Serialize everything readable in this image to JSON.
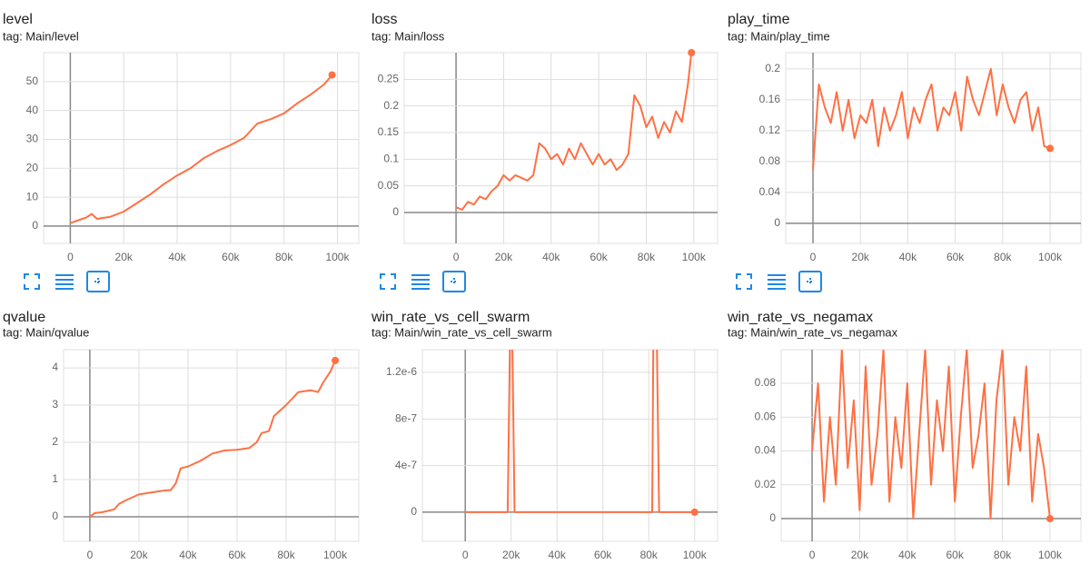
{
  "chart_data": [
    {
      "type": "line",
      "title": "level",
      "subtitle": "tag: Main/level",
      "x": [
        0,
        3000,
        6000,
        8000,
        10000,
        15000,
        20000,
        25000,
        30000,
        35000,
        40000,
        45000,
        50000,
        55000,
        60000,
        65000,
        70000,
        75000,
        80000,
        85000,
        90000,
        95000,
        98000
      ],
      "series": [
        {
          "color": "#ff7043",
          "values": [
            1,
            2,
            3,
            4.2,
            2.5,
            3.2,
            5,
            8,
            11,
            14.5,
            17.5,
            20,
            23.5,
            26,
            28,
            30.5,
            35.5,
            37,
            39,
            42.5,
            45.5,
            49,
            52.3
          ]
        }
      ],
      "xlim": [
        -10000,
        108000
      ],
      "ylim": [
        -6,
        60
      ],
      "xticks": [
        0,
        {
          "value": 20000,
          "label": "20k"
        },
        {
          "value": 40000,
          "label": "40k"
        },
        {
          "value": 60000,
          "label": "60k"
        },
        {
          "value": 80000,
          "label": "80k"
        },
        {
          "value": 100000,
          "label": "100k"
        }
      ],
      "yticks": [
        0,
        10,
        20,
        30,
        40,
        50
      ],
      "grid": true
    },
    {
      "type": "line",
      "title": "loss",
      "subtitle": "tag: Main/loss",
      "x": [
        0,
        2500,
        5000,
        7500,
        10000,
        12500,
        15000,
        17500,
        20000,
        22500,
        25000,
        27500,
        30000,
        32500,
        35000,
        37500,
        40000,
        42500,
        45000,
        47500,
        50000,
        52500,
        55000,
        57500,
        60000,
        62500,
        65000,
        67500,
        70000,
        72500,
        75000,
        77500,
        80000,
        82500,
        85000,
        87500,
        90000,
        92500,
        95000,
        97500,
        99000
      ],
      "series": [
        {
          "color": "#ff7043",
          "values": [
            0.01,
            0.005,
            0.02,
            0.015,
            0.03,
            0.025,
            0.04,
            0.05,
            0.07,
            0.06,
            0.07,
            0.065,
            0.06,
            0.07,
            0.13,
            0.12,
            0.1,
            0.11,
            0.09,
            0.12,
            0.1,
            0.13,
            0.11,
            0.09,
            0.11,
            0.09,
            0.1,
            0.08,
            0.09,
            0.11,
            0.22,
            0.2,
            0.16,
            0.18,
            0.14,
            0.17,
            0.15,
            0.19,
            0.17,
            0.24,
            0.3
          ]
        }
      ],
      "xlim": [
        -21800,
        110000
      ],
      "ylim": [
        -0.058,
        0.3
      ],
      "xticks": [
        0,
        {
          "value": 20000,
          "label": "20k"
        },
        {
          "value": 40000,
          "label": "40k"
        },
        {
          "value": 60000,
          "label": "60k"
        },
        {
          "value": 80000,
          "label": "80k"
        },
        {
          "value": 100000,
          "label": "100k"
        }
      ],
      "yticks": [
        0,
        0.05,
        0.1,
        0.15,
        0.2,
        0.25
      ],
      "grid": true
    },
    {
      "type": "line",
      "title": "play_time",
      "subtitle": "tag: Main/play_time",
      "x": [
        0,
        2500,
        5000,
        7500,
        10000,
        12500,
        15000,
        17500,
        20000,
        22500,
        25000,
        27500,
        30000,
        32500,
        35000,
        37500,
        40000,
        42500,
        45000,
        47500,
        50000,
        52500,
        55000,
        57500,
        60000,
        62500,
        65000,
        67500,
        70000,
        72500,
        75000,
        77500,
        80000,
        82500,
        85000,
        87500,
        90000,
        92500,
        95000,
        97500,
        100000
      ],
      "series": [
        {
          "color": "#ff7043",
          "values": [
            0.07,
            0.18,
            0.15,
            0.13,
            0.17,
            0.12,
            0.16,
            0.11,
            0.14,
            0.13,
            0.16,
            0.1,
            0.15,
            0.12,
            0.14,
            0.17,
            0.11,
            0.15,
            0.13,
            0.16,
            0.18,
            0.12,
            0.15,
            0.14,
            0.17,
            0.12,
            0.19,
            0.16,
            0.14,
            0.17,
            0.2,
            0.14,
            0.18,
            0.15,
            0.13,
            0.16,
            0.17,
            0.12,
            0.15,
            0.1,
            0.097
          ]
        }
      ],
      "xlim": [
        -11500,
        113000
      ],
      "ylim": [
        -0.026,
        0.221
      ],
      "xticks": [
        0,
        {
          "value": 20000,
          "label": "20k"
        },
        {
          "value": 40000,
          "label": "40k"
        },
        {
          "value": 60000,
          "label": "60k"
        },
        {
          "value": 80000,
          "label": "80k"
        },
        {
          "value": 100000,
          "label": "100k"
        }
      ],
      "yticks": [
        0,
        0.04,
        0.08,
        0.12,
        0.16,
        0.2
      ],
      "grid": true
    },
    {
      "type": "line",
      "title": "qvalue",
      "subtitle": "tag: Main/qvalue",
      "x": [
        0,
        2000,
        5000,
        10000,
        12000,
        15000,
        20000,
        25000,
        30000,
        33000,
        35000,
        37000,
        40000,
        45000,
        50000,
        55000,
        60000,
        65000,
        68000,
        70000,
        73000,
        75000,
        80000,
        85000,
        90000,
        93000,
        95000,
        98000,
        100000
      ],
      "series": [
        {
          "color": "#ff7043",
          "values": [
            0,
            0.1,
            0.12,
            0.2,
            0.35,
            0.45,
            0.6,
            0.65,
            0.7,
            0.72,
            0.9,
            1.3,
            1.35,
            1.5,
            1.7,
            1.78,
            1.8,
            1.85,
            2.0,
            2.25,
            2.3,
            2.7,
            3.0,
            3.35,
            3.4,
            3.35,
            3.6,
            3.9,
            4.2
          ]
        }
      ],
      "xlim": [
        -10700,
        109600
      ],
      "ylim": [
        -0.66,
        4.49
      ],
      "xticks": [
        0,
        {
          "value": 20000,
          "label": "20k"
        },
        {
          "value": 40000,
          "label": "40k"
        },
        {
          "value": 60000,
          "label": "60k"
        },
        {
          "value": 80000,
          "label": "80k"
        },
        {
          "value": 100000,
          "label": "100k"
        }
      ],
      "yticks": [
        0,
        1,
        2,
        3,
        4
      ],
      "grid": true
    },
    {
      "type": "line",
      "title": "win_rate_vs_cell_swarm",
      "subtitle": "tag: Main/win_rate_vs_cell_swarm",
      "x": [
        0,
        18500,
        19500,
        20500,
        21500,
        81500,
        82000,
        83500,
        84500,
        100000
      ],
      "series": [
        {
          "color": "#ff7043",
          "values": [
            0,
            0,
            1.5e-06,
            1.5e-06,
            0,
            0,
            1.5e-06,
            1.5e-06,
            0,
            0
          ]
        }
      ],
      "xlim": [
        -18700,
        110000
      ],
      "ylim": [
        -2.5e-07,
        1.395e-06
      ],
      "xticks": [
        0,
        {
          "value": 20000,
          "label": "20k"
        },
        {
          "value": 40000,
          "label": "40k"
        },
        {
          "value": 60000,
          "label": "60k"
        },
        {
          "value": 80000,
          "label": "80k"
        },
        {
          "value": 100000,
          "label": "100k"
        }
      ],
      "yticks": [
        0,
        {
          "value": 4e-07,
          "label": "4e-7"
        },
        {
          "value": 8e-07,
          "label": "8e-7"
        },
        {
          "value": 1.2e-06,
          "label": "1.2e-6"
        }
      ],
      "grid": true
    },
    {
      "type": "line",
      "title": "win_rate_vs_negamax",
      "subtitle": "tag: Main/win_rate_vs_negamax",
      "x": [
        0,
        2500,
        5000,
        7500,
        10000,
        12500,
        15000,
        17500,
        20000,
        22500,
        25000,
        27500,
        30000,
        32500,
        35000,
        37500,
        40000,
        42500,
        45000,
        47500,
        50000,
        52500,
        55000,
        57500,
        60000,
        62500,
        65000,
        67500,
        70000,
        72500,
        75000,
        77500,
        80000,
        82500,
        85000,
        87500,
        90000,
        92500,
        95000,
        97500,
        100000
      ],
      "series": [
        {
          "color": "#ff7043",
          "values": [
            0.04,
            0.08,
            0.01,
            0.06,
            0.02,
            0.1,
            0.03,
            0.07,
            0.005,
            0.09,
            0.02,
            0.05,
            0.1,
            0.01,
            0.06,
            0.03,
            0.08,
            0.0,
            0.05,
            0.1,
            0.02,
            0.07,
            0.04,
            0.09,
            0.01,
            0.06,
            0.1,
            0.03,
            0.05,
            0.08,
            0.0,
            0.07,
            0.1,
            0.02,
            0.06,
            0.04,
            0.09,
            0.01,
            0.05,
            0.03,
            0.0
          ]
        }
      ],
      "xlim": [
        -13000,
        113000
      ],
      "ylim": [
        -0.0134,
        0.0999
      ],
      "xticks": [
        0,
        {
          "value": 20000,
          "label": "20k"
        },
        {
          "value": 40000,
          "label": "40k"
        },
        {
          "value": 60000,
          "label": "60k"
        },
        {
          "value": 80000,
          "label": "80k"
        },
        {
          "value": 100000,
          "label": "100k"
        }
      ],
      "yticks": [
        0,
        0.02,
        0.04,
        0.06,
        0.08
      ],
      "grid": true
    }
  ]
}
